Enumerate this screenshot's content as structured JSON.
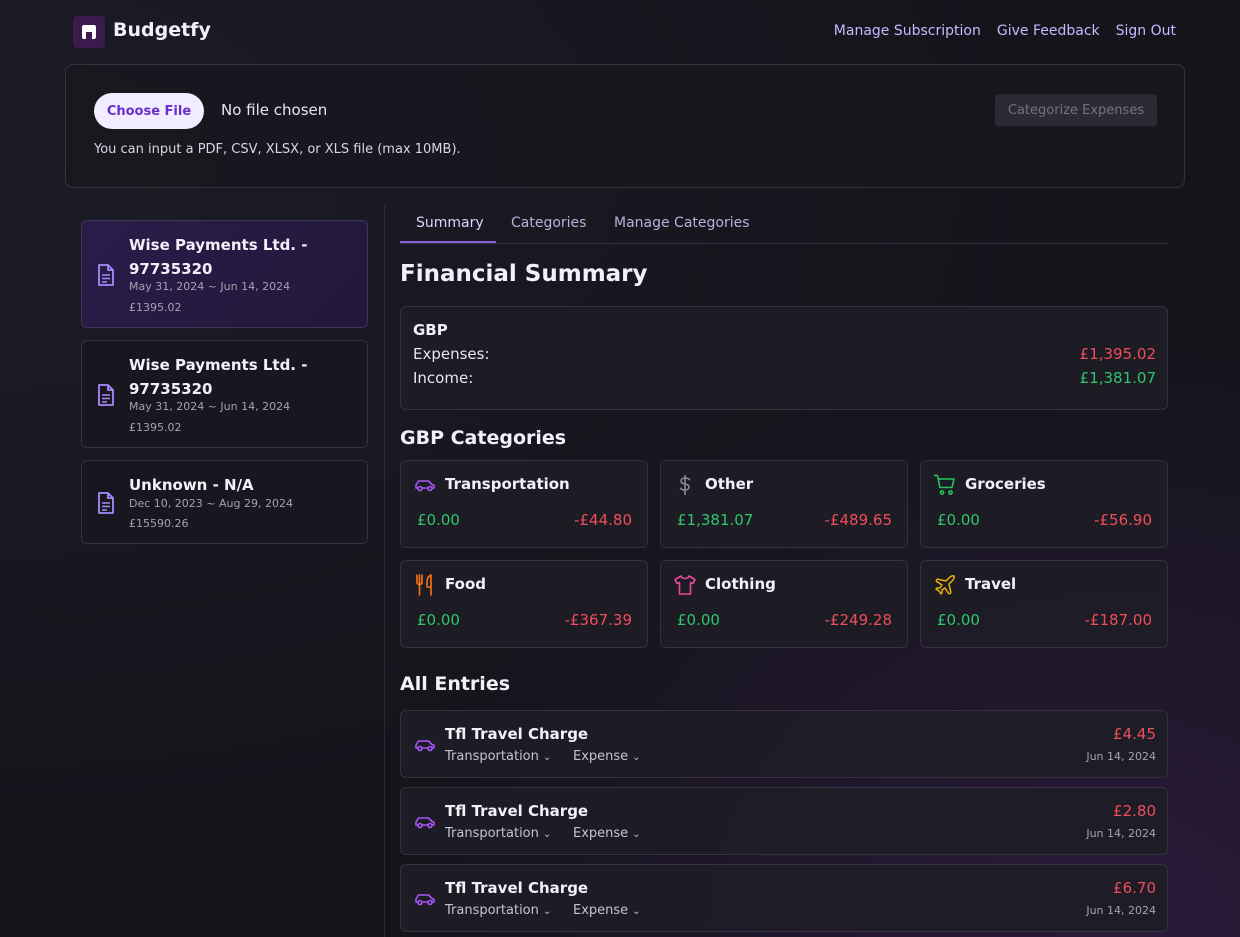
{
  "header": {
    "brand": "Budgetfy",
    "nav": [
      "Manage Subscription",
      "Give Feedback",
      "Sign Out"
    ]
  },
  "upload": {
    "choose_label": "Choose File",
    "file_status": "No file chosen",
    "categorize_label": "Categorize Expenses",
    "hint": "You can input a PDF, CSV, XLSX, or XLS file (max 10MB)."
  },
  "statements": [
    {
      "title": "Wise Payments Ltd. - 97735320",
      "dates": "May 31, 2024 ~ Jun 14, 2024",
      "amount": "£1395.02"
    },
    {
      "title": "Wise Payments Ltd. - 97735320",
      "dates": "May 31, 2024 ~ Jun 14, 2024",
      "amount": "£1395.02"
    },
    {
      "title": "Unknown - N/A",
      "dates": "Dec 10, 2023 ~ Aug 29, 2024",
      "amount": "£15590.26"
    }
  ],
  "tabs": [
    "Summary",
    "Categories",
    "Manage Categories"
  ],
  "summary": {
    "heading": "Financial Summary",
    "currency": "GBP",
    "expenses_label": "Expenses:",
    "expenses_value": "£1,395.02",
    "income_label": "Income:",
    "income_value": "£1,381.07"
  },
  "categories_heading": "GBP Categories",
  "categories": [
    {
      "name": "Transportation",
      "income": "£0.00",
      "expense": "-£44.80",
      "icon": "car-icon",
      "color": "#a855f7"
    },
    {
      "name": "Other",
      "income": "£1,381.07",
      "expense": "-£489.65",
      "icon": "dollar-icon",
      "color": "#8b8a96"
    },
    {
      "name": "Groceries",
      "income": "£0.00",
      "expense": "-£56.90",
      "icon": "cart-icon",
      "color": "#22c55e"
    },
    {
      "name": "Food",
      "income": "£0.00",
      "expense": "-£367.39",
      "icon": "utensils-icon",
      "color": "#f97316"
    },
    {
      "name": "Clothing",
      "income": "£0.00",
      "expense": "-£249.28",
      "icon": "shirt-icon",
      "color": "#ec4899"
    },
    {
      "name": "Travel",
      "income": "£0.00",
      "expense": "-£187.00",
      "icon": "plane-icon",
      "color": "#eab308"
    }
  ],
  "entries_heading": "All Entries",
  "entries": [
    {
      "name": "Tfl Travel Charge",
      "category": "Transportation",
      "type": "Expense",
      "amount": "£4.45",
      "date": "Jun 14, 2024"
    },
    {
      "name": "Tfl Travel Charge",
      "category": "Transportation",
      "type": "Expense",
      "amount": "£2.80",
      "date": "Jun 14, 2024"
    },
    {
      "name": "Tfl Travel Charge",
      "category": "Transportation",
      "type": "Expense",
      "amount": "£6.70",
      "date": "Jun 14, 2024"
    }
  ]
}
